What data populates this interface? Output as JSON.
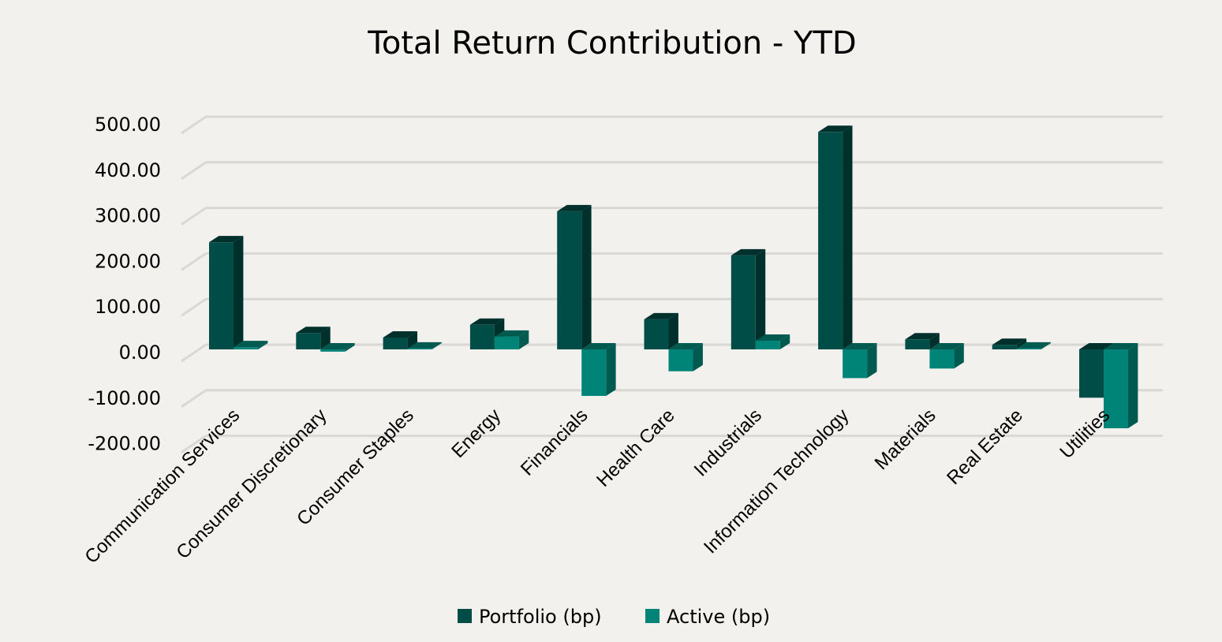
{
  "chart_data": {
    "type": "bar",
    "style": "3d-clustered-column",
    "title": "Total Return Contribution - YTD",
    "xlabel": "",
    "ylabel": "",
    "ylim": [
      -200,
      500
    ],
    "yticks": [
      "500.00",
      "400.00",
      "300.00",
      "200.00",
      "100.00",
      "0.00",
      "-100.00",
      "-200.00"
    ],
    "grid": true,
    "legend_position": "bottom",
    "categories": [
      "Communication Services",
      "Consumer Discretionary",
      "Consumer Staples",
      "Energy",
      "Financials",
      "Health Care",
      "Industrials",
      "Information Technology",
      "Materials",
      "Real Estate",
      "Utilities"
    ],
    "series": [
      {
        "name": "Portfolio (bp)",
        "color": "#004d47",
        "side_color": "#00302c",
        "values": [
          235,
          36,
          26,
          54,
          303,
          66,
          206,
          477,
          22,
          10,
          -106
        ]
      },
      {
        "name": "Active (bp)",
        "color": "#008477",
        "side_color": "#005a50",
        "values": [
          5,
          -5,
          2,
          28,
          -102,
          -48,
          19,
          -63,
          -42,
          2,
          -173
        ]
      }
    ]
  }
}
